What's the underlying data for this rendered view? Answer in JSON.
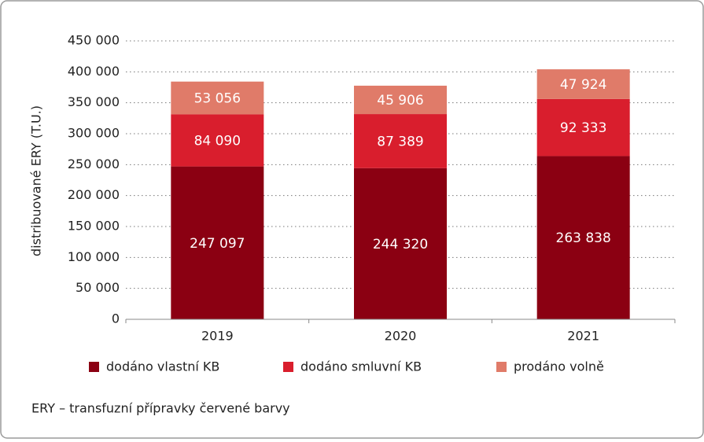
{
  "chart_data": {
    "type": "stacked_bar",
    "y_label": "distribuované ERY (T.U.)",
    "categories": [
      "2019",
      "2020",
      "2021"
    ],
    "series": [
      {
        "name": "dodáno vlastní KB",
        "color": "#8b0012",
        "values": [
          247097,
          244320,
          263838
        ],
        "value_labels": [
          "247 097",
          "244 320",
          "263 838"
        ]
      },
      {
        "name": "dodáno smluvní KB",
        "color": "#d91e2d",
        "values": [
          84090,
          87389,
          92333
        ],
        "value_labels": [
          "84 090",
          "87 389",
          "92 333"
        ]
      },
      {
        "name": "prodáno volně",
        "color": "#e07b69",
        "values": [
          53056,
          45906,
          47924
        ],
        "value_labels": [
          "53 056",
          "45 906",
          "47 924"
        ]
      }
    ],
    "ylim": [
      0,
      450000
    ],
    "yticks": [
      0,
      {
        "value": 50000,
        "label": "50 000"
      },
      {
        "value": 100000,
        "label": "100 000"
      },
      {
        "value": 150000,
        "label": "150 000"
      },
      {
        "value": 200000,
        "label": "200 000"
      },
      {
        "value": 250000,
        "label": "250 000"
      },
      {
        "value": 300000,
        "label": "300 000"
      },
      {
        "value": 350000,
        "label": "350 000"
      },
      {
        "value": 400000,
        "label": "400 000"
      },
      {
        "value": 450000,
        "label": "450 000"
      }
    ],
    "grid": true,
    "legend": "bottom",
    "footnote": "ERY – transfuzní přípravky červené barvy"
  }
}
